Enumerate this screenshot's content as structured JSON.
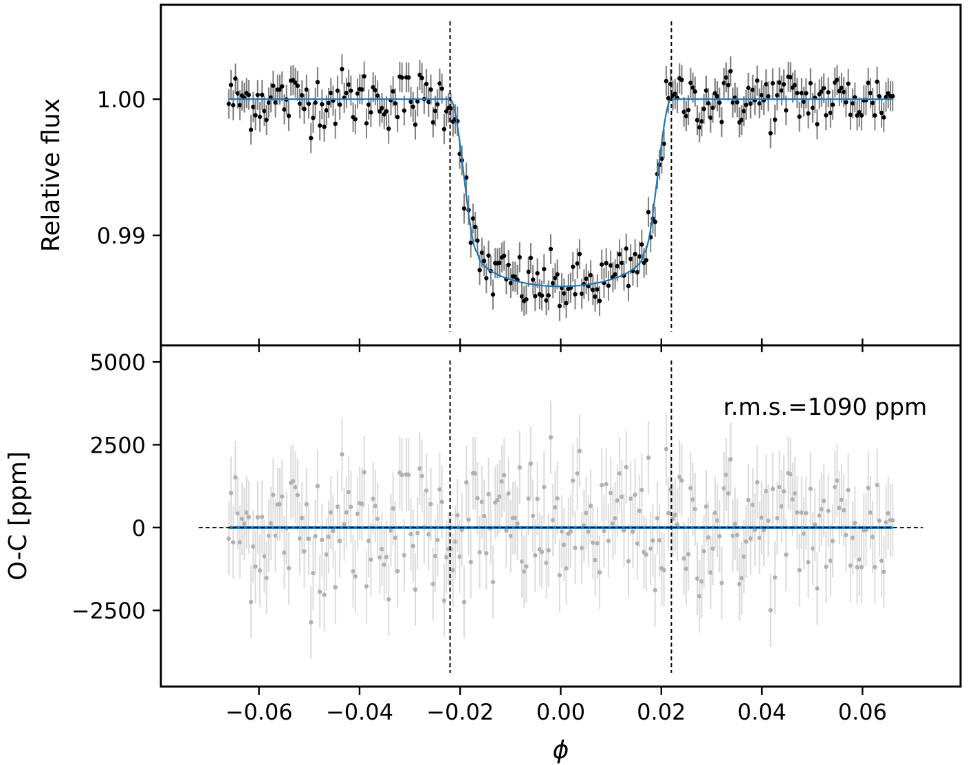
{
  "chart_data": [
    {
      "type": "scatter",
      "panel": "top",
      "title": "",
      "xlabel": "",
      "ylabel": "Relative flux",
      "xlim": [
        -0.0795,
        0.0795
      ],
      "ylim": [
        0.98192,
        1.00693
      ],
      "grid": false,
      "xticks": [
        -0.06,
        -0.04,
        -0.02,
        0.0,
        0.02,
        0.04,
        0.06
      ],
      "yticks": [
        0.99,
        1.0
      ],
      "ytick_labels": [
        "0.99",
        "1.00"
      ],
      "transit_boundaries": [
        -0.022,
        0.022
      ],
      "model": {
        "baseline": 1.0,
        "min_flux": 0.98625,
        "x_range": [
          -0.066,
          0.066
        ],
        "ingress_width": 0.0055,
        "color": "#1f77b4"
      },
      "points_color": "#000000",
      "errorbar_color": "#808080",
      "errorbar": 0.0011,
      "n_points": 300,
      "residual_rms_ppm": 1090
    },
    {
      "type": "scatter",
      "panel": "bottom",
      "title": "",
      "xlabel": "ϕ",
      "ylabel": "O-C [ppm]",
      "xlim": [
        -0.0795,
        0.0795
      ],
      "ylim": [
        -4800,
        5500
      ],
      "grid": false,
      "xticks": [
        -0.06,
        -0.04,
        -0.02,
        0.0,
        0.02,
        0.04,
        0.06
      ],
      "xtick_labels": [
        "−0.06",
        "−0.04",
        "−0.02",
        "0.00",
        "0.02",
        "0.04",
        "0.06"
      ],
      "yticks": [
        -2500,
        0,
        2500,
        5000
      ],
      "ytick_labels": [
        "−2500",
        "0",
        "2500",
        "5000"
      ],
      "transit_boundaries": [
        -0.022,
        0.022
      ],
      "zero_line_range": [
        -0.072,
        0.072
      ],
      "points_color": "#b0b0b0",
      "errorbar_color": "#dcdcdc",
      "errorbar": 1100,
      "annotation": "r.m.s.=1090 ppm"
    }
  ]
}
